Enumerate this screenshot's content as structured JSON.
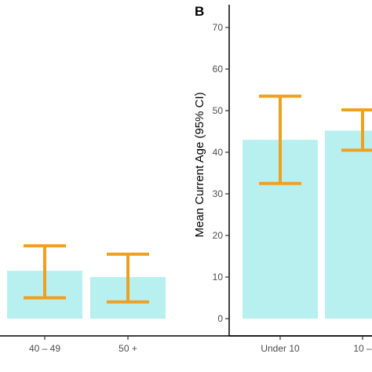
{
  "chart_data": [
    {
      "type": "bar",
      "panel": "",
      "categories": [
        "40 – 49",
        "50 +"
      ],
      "values": [
        11.5,
        10.0
      ],
      "error_low": [
        5.0,
        4.0
      ],
      "error_high": [
        17.5,
        15.5
      ],
      "ylim": [
        0,
        75
      ],
      "ylabel": "",
      "bar_color": "#b8f0f0",
      "error_color": "#f0a020"
    },
    {
      "type": "bar",
      "panel": "B",
      "categories": [
        "Under 10",
        "10 –"
      ],
      "values": [
        43.0,
        45.2
      ],
      "error_low": [
        32.5,
        40.5
      ],
      "error_high": [
        53.5,
        50.2
      ],
      "ylim": [
        0,
        75
      ],
      "yticks": [
        0,
        10,
        20,
        30,
        40,
        50,
        60,
        70
      ],
      "ylabel": "Mean Current Age (95% CI)",
      "bar_color": "#b8f0f0",
      "error_color": "#f0a020"
    }
  ]
}
